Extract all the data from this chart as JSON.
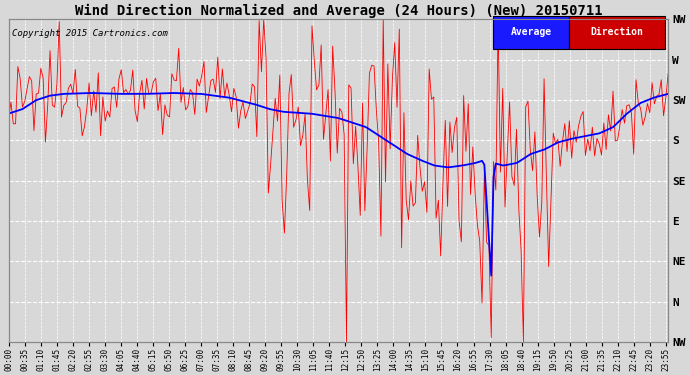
{
  "title": "Wind Direction Normalized and Average (24 Hours) (New) 20150711",
  "copyright": "Copyright 2015 Cartronics.com",
  "yticks_labels": [
    "NW",
    "W",
    "SW",
    "S",
    "SE",
    "E",
    "NE",
    "N",
    "NW"
  ],
  "yticks_values": [
    315,
    270,
    225,
    180,
    135,
    90,
    45,
    0,
    -45
  ],
  "ymin": -45,
  "ymax": 315,
  "bg_color": "#d8d8d8",
  "grid_color": "#ffffff",
  "legend_avg_bg": "#1a1aff",
  "legend_dir_bg": "#cc0000",
  "legend_avg_text": "Average",
  "legend_dir_text": "Direction",
  "avg_line_color": "#0000ff",
  "dir_line_color": "#ff0000",
  "title_fontsize": 10,
  "copyright_fontsize": 6.5,
  "num_points": 288
}
